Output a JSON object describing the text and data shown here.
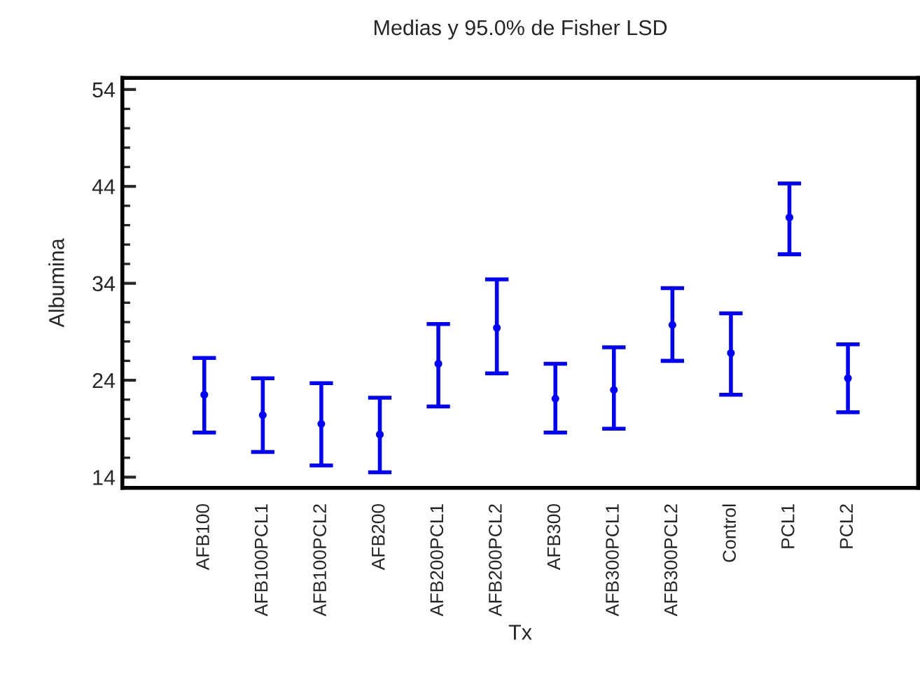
{
  "chart_data": {
    "type": "scatter",
    "title": "Medias y 95.0% de Fisher LSD",
    "xlabel": "Tx",
    "ylabel": "Albumina",
    "categories": [
      "AFB100",
      "AFB100PCL1",
      "AFB100PCL2",
      "AFB200",
      "AFB200PCL1",
      "AFB200PCL2",
      "AFB300",
      "AFB300PCL1",
      "AFB300PCL2",
      "Control",
      "PCL1",
      "PCL2"
    ],
    "series": [
      {
        "color": "#0000ff",
        "values": [
          22.5,
          20.4,
          19.5,
          18.4,
          25.7,
          29.4,
          22.1,
          23.0,
          29.7,
          26.8,
          40.8,
          24.2
        ],
        "errors": [
          [
            18.6,
            26.3
          ],
          [
            16.6,
            24.2
          ],
          [
            15.2,
            23.7
          ],
          [
            14.5,
            22.2
          ],
          [
            21.3,
            29.8
          ],
          [
            24.7,
            34.4
          ],
          [
            18.6,
            25.7
          ],
          [
            19.0,
            27.4
          ],
          [
            26.0,
            33.5
          ],
          [
            22.5,
            30.9
          ],
          [
            37.0,
            44.3
          ],
          [
            20.7,
            27.7
          ]
        ]
      }
    ],
    "ylim": [
      12.9,
      55.2
    ],
    "yticks": [
      14,
      24,
      34,
      44,
      54
    ],
    "marker": "circle",
    "grid": false,
    "legend": false
  }
}
